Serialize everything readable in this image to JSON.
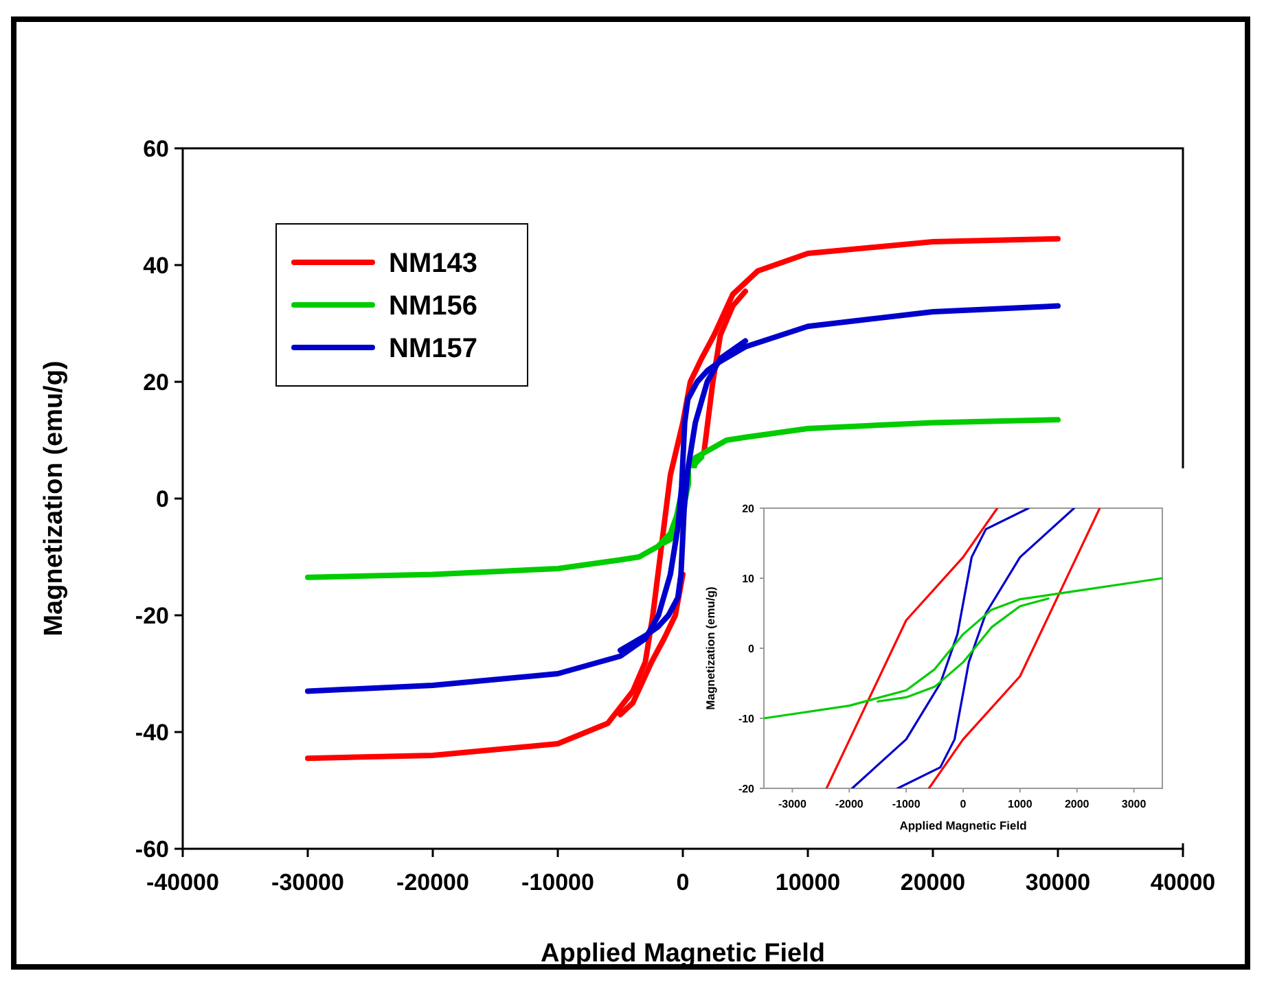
{
  "chart_data": [
    {
      "type": "line",
      "xlabel": "Applied Magnetic Field",
      "ylabel": "Magnetization (emu/g)",
      "xlim": [
        -40000,
        40000
      ],
      "xticks": [
        -40000,
        -30000,
        -20000,
        -10000,
        0,
        10000,
        20000,
        30000,
        40000
      ],
      "ylim": [
        -60,
        60
      ],
      "yticks": [
        -60,
        -40,
        -20,
        0,
        20,
        40,
        60
      ],
      "legend": "top left",
      "series": [
        {
          "name": "NM143",
          "color": "#ff0000",
          "x": [
            -30000,
            -20000,
            -10000,
            -6000,
            -4000,
            -3000,
            -2400,
            -1700,
            -1000,
            0,
            600,
            1500,
            2500,
            4000,
            6000,
            10000,
            20000,
            30000
          ],
          "values": [
            -44.5,
            -44,
            -42,
            -38.5,
            -33,
            -28,
            -20,
            -8,
            4,
            13,
            20,
            24,
            28,
            35,
            39,
            42,
            44,
            44.5
          ]
        },
        {
          "color": "#ff0000",
          "x": [
            -5000,
            -4000,
            -2500,
            -1500,
            -600,
            0,
            1000,
            1700,
            2400,
            3000,
            4000,
            5000
          ],
          "values": [
            -37,
            -35,
            -28,
            -24,
            -20,
            -13,
            null,
            8,
            20,
            28,
            33,
            35.5
          ]
        },
        {
          "name": "NM156",
          "color": "#00cc00",
          "x": [
            -30000,
            -20000,
            -10000,
            -5000,
            -3500,
            -2000,
            -1000,
            -500,
            0,
            500,
            1000,
            2000,
            3500,
            5000,
            10000,
            20000,
            30000
          ],
          "values": [
            -13.5,
            -13,
            -12,
            -10.5,
            -10,
            -8.2,
            -6,
            -3,
            2,
            5.5,
            7,
            8.2,
            10,
            10.5,
            12,
            13,
            13.5
          ]
        },
        {
          "color": "#00cc00",
          "x": [
            -1500,
            -1000,
            -500,
            0,
            500,
            1000,
            1500
          ],
          "values": [
            -7.6,
            -7,
            -5.5,
            -2,
            3,
            6,
            7.1
          ]
        },
        {
          "name": "NM157",
          "color": "#0000cc",
          "x": [
            -30000,
            -20000,
            -10000,
            -5000,
            -3000,
            -1950,
            -1000,
            -400,
            -100,
            150,
            400,
            1150,
            2000,
            3000,
            5000,
            10000,
            20000,
            30000
          ],
          "values": [
            -33,
            -32,
            -30,
            -27,
            -24,
            -20,
            -13,
            -5,
            2,
            13,
            17,
            20,
            22,
            23.5,
            26,
            29.5,
            32,
            33
          ]
        },
        {
          "color": "#0000cc",
          "x": [
            -5000,
            -3000,
            -2000,
            -1150,
            -400,
            -150,
            100,
            400,
            1000,
            1950,
            3000,
            5000
          ],
          "values": [
            -26,
            -23.5,
            -22,
            -20,
            -17,
            -13,
            -2,
            5,
            13,
            20,
            24,
            27
          ]
        }
      ]
    },
    {
      "type": "line",
      "xlabel": "Applied Magnetic Field",
      "ylabel": "Magnetization (emu/g)",
      "xlim": [
        -3500,
        3500
      ],
      "xticks": [
        -3000,
        -2000,
        -1000,
        0,
        1000,
        2000,
        3000
      ],
      "ylim": [
        -20,
        20
      ],
      "yticks": [
        -20,
        -10,
        0,
        10,
        20
      ],
      "series": [
        {
          "color": "#ff0000",
          "x": [
            -2400,
            -1700,
            -1000,
            0,
            600
          ],
          "values": [
            -20,
            -8,
            4,
            13,
            20
          ]
        },
        {
          "color": "#ff0000",
          "x": [
            -600,
            0,
            1000,
            1700,
            2400
          ],
          "values": [
            -20,
            -13,
            -4,
            8,
            20
          ]
        },
        {
          "color": "#0000cc",
          "x": [
            -1950,
            -1000,
            -400,
            -100,
            150,
            400,
            1150
          ],
          "values": [
            -20,
            -13,
            -5,
            2,
            13,
            17,
            20
          ]
        },
        {
          "color": "#0000cc",
          "x": [
            -1150,
            -400,
            -150,
            100,
            400,
            1000,
            1950
          ],
          "values": [
            -20,
            -17,
            -13,
            -2,
            5,
            13,
            20
          ]
        },
        {
          "color": "#00cc00",
          "x": [
            -3500,
            -2000,
            -1000,
            -500,
            0,
            500,
            1000,
            2000,
            3500
          ],
          "values": [
            -10,
            -8.2,
            -6,
            -3,
            2,
            5.5,
            7,
            8.2,
            10
          ]
        },
        {
          "color": "#00cc00",
          "x": [
            -1500,
            -1000,
            -500,
            0,
            500,
            1000,
            1500
          ],
          "values": [
            -7.6,
            -7,
            -5.5,
            -2,
            3,
            6,
            7.1
          ]
        }
      ]
    }
  ]
}
